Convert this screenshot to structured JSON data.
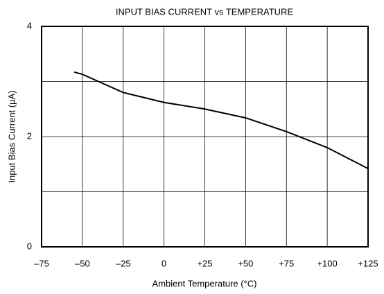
{
  "chart_data": {
    "type": "line",
    "title": "INPUT BIAS CURRENT vs TEMPERATURE",
    "x_label": "Ambient Temperature (°C)",
    "y_label": "Input Bias Current (µA)",
    "x": [
      -55,
      -50,
      -25,
      0,
      25,
      50,
      75,
      100,
      125
    ],
    "series": [
      {
        "name": "Input Bias Current",
        "color": "#000000",
        "values": [
          3.17,
          3.13,
          2.8,
          2.62,
          2.5,
          2.34,
          2.09,
          1.8,
          1.42
        ]
      }
    ],
    "xlim": [
      -75,
      125
    ],
    "xticks": [
      {
        "value": -75,
        "label": "–75"
      },
      {
        "value": -50,
        "label": "–50"
      },
      {
        "value": -25,
        "label": "–25"
      },
      0,
      {
        "value": 25,
        "label": "+25"
      },
      {
        "value": 50,
        "label": "+50"
      },
      {
        "value": 75,
        "label": "+75"
      },
      {
        "value": 100,
        "label": "+100"
      },
      {
        "value": 125,
        "label": "+125"
      }
    ],
    "ylim": [
      0,
      4
    ],
    "yticks": [
      0,
      2,
      4
    ],
    "minor_yticks": [
      1,
      3
    ],
    "grid": true
  }
}
